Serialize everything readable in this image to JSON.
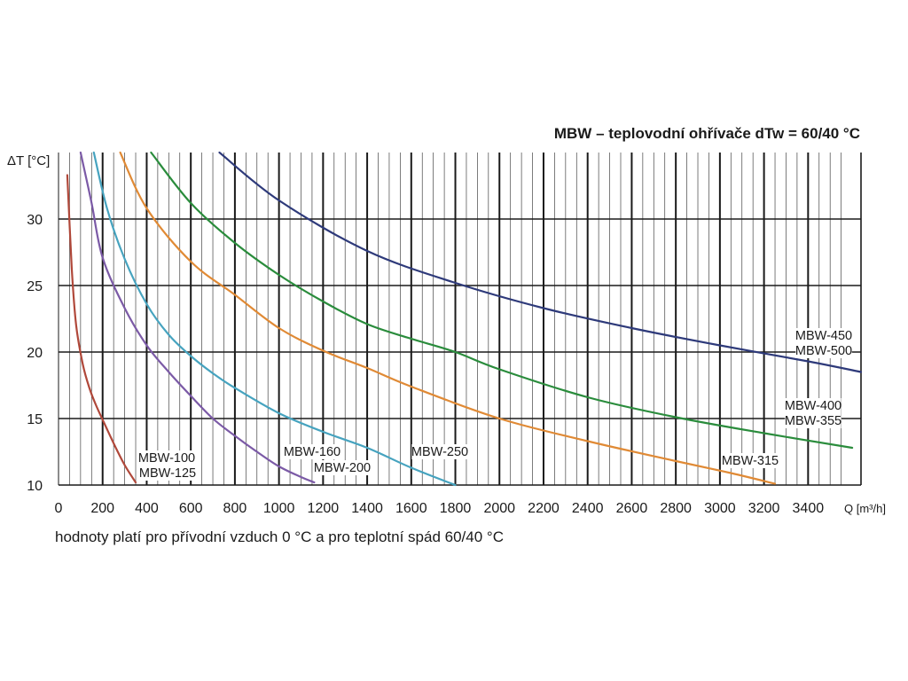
{
  "title": "MBW – teplovodní ohřívače dTw = 60/40 °C",
  "note": "hodnoty platí pro přívodní vzduch 0 °C a pro teplotní spád 60/40 °C",
  "chart_data": {
    "type": "line",
    "title": "MBW – teplovodní ohřívače dTw = 60/40 °C",
    "xlabel": "Q [m³/h]",
    "ylabel": "ΔT [°C]",
    "xlim": [
      0,
      3640
    ],
    "ylim": [
      10,
      35
    ],
    "x_ticks": [
      0,
      200,
      400,
      600,
      800,
      1000,
      1200,
      1400,
      1600,
      1800,
      2000,
      2200,
      2400,
      2600,
      2800,
      3000,
      3200,
      3400
    ],
    "y_ticks": [
      10,
      15,
      20,
      25,
      30
    ],
    "grid": true,
    "series": [
      {
        "color": "#b0483a",
        "label_lines": [
          "MBW-100",
          "MBW-125"
        ],
        "points": [
          [
            40,
            33.3
          ],
          [
            60,
            26.3
          ],
          [
            80,
            22.0
          ],
          [
            110,
            19.1
          ],
          [
            140,
            17.3
          ],
          [
            170,
            16.0
          ],
          [
            220,
            14.2
          ],
          [
            260,
            12.8
          ],
          [
            300,
            11.5
          ],
          [
            350,
            10.2
          ]
        ]
      },
      {
        "color": "#7b5aa6",
        "label_lines": [
          "MBW-160",
          "MBW-200"
        ],
        "points": [
          [
            100,
            35.0
          ],
          [
            150,
            31.2
          ],
          [
            200,
            27.1
          ],
          [
            300,
            23.3
          ],
          [
            400,
            20.5
          ],
          [
            500,
            18.5
          ],
          [
            600,
            16.7
          ],
          [
            700,
            15.0
          ],
          [
            800,
            13.7
          ],
          [
            900,
            12.5
          ],
          [
            1000,
            11.4
          ],
          [
            1100,
            10.6
          ],
          [
            1160,
            10.2
          ]
        ]
      },
      {
        "color": "#46a3bf",
        "label_lines": [
          "MBW-250"
        ],
        "points": [
          [
            160,
            35.0
          ],
          [
            220,
            30.8
          ],
          [
            300,
            27.0
          ],
          [
            400,
            23.6
          ],
          [
            500,
            21.3
          ],
          [
            600,
            19.7
          ],
          [
            700,
            18.4
          ],
          [
            800,
            17.3
          ],
          [
            1000,
            15.4
          ],
          [
            1200,
            14.0
          ],
          [
            1400,
            12.8
          ],
          [
            1600,
            11.3
          ],
          [
            1800,
            10.0
          ]
        ]
      },
      {
        "color": "#e08a35",
        "label_lines": [
          "MBW-315"
        ],
        "points": [
          [
            280,
            35.0
          ],
          [
            400,
            30.8
          ],
          [
            600,
            26.8
          ],
          [
            800,
            24.3
          ],
          [
            1000,
            21.8
          ],
          [
            1200,
            20.1
          ],
          [
            1400,
            18.8
          ],
          [
            1600,
            17.4
          ],
          [
            2000,
            15.0
          ],
          [
            2400,
            13.3
          ],
          [
            2800,
            11.8
          ],
          [
            3050,
            10.9
          ],
          [
            3250,
            10.1
          ]
        ]
      },
      {
        "color": "#2a8c3c",
        "label_lines": [
          "MBW-400",
          "MBW-355"
        ],
        "points": [
          [
            420,
            35.0
          ],
          [
            600,
            31.2
          ],
          [
            800,
            28.2
          ],
          [
            1000,
            25.8
          ],
          [
            1200,
            23.8
          ],
          [
            1400,
            22.1
          ],
          [
            1600,
            21.0
          ],
          [
            1800,
            20.0
          ],
          [
            2000,
            18.7
          ],
          [
            2400,
            16.6
          ],
          [
            2800,
            15.1
          ],
          [
            3200,
            13.9
          ],
          [
            3600,
            12.8
          ]
        ]
      },
      {
        "color": "#2e3a7a",
        "label_lines": [
          "MBW-450",
          "MBW-500"
        ],
        "points": [
          [
            730,
            35.0
          ],
          [
            1000,
            31.4
          ],
          [
            1400,
            27.6
          ],
          [
            1800,
            25.2
          ],
          [
            2200,
            23.3
          ],
          [
            2600,
            21.8
          ],
          [
            3000,
            20.5
          ],
          [
            3400,
            19.3
          ],
          [
            3640,
            18.5
          ]
        ]
      }
    ]
  }
}
